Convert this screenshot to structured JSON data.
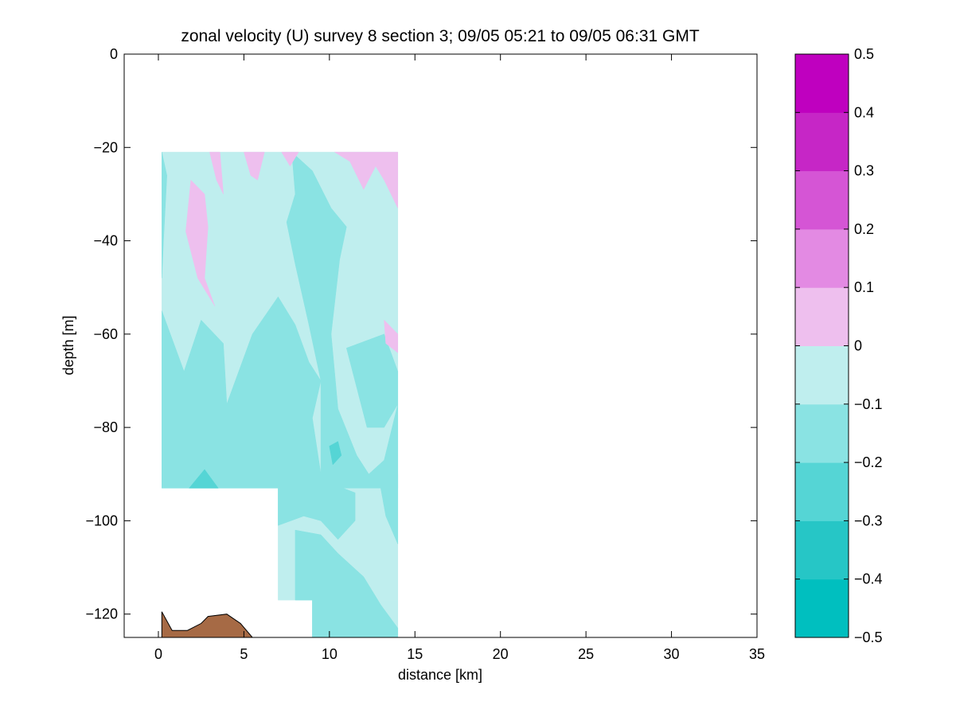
{
  "chart_data": {
    "type": "heatmap",
    "subtype": "filled-contour",
    "title": "zonal velocity (U) survey 8 section 3; 09/05 05:21 to 09/05 06:31 GMT",
    "xlabel": "distance [km]",
    "ylabel": "depth [m]",
    "xlim": [
      -2,
      35
    ],
    "ylim": [
      -125,
      0
    ],
    "xticks": [
      0,
      5,
      10,
      15,
      20,
      25,
      30,
      35
    ],
    "yticks": [
      0,
      -20,
      -40,
      -60,
      -80,
      -100,
      -120
    ],
    "xtick_labels": [
      "0",
      "5",
      "10",
      "15",
      "20",
      "25",
      "30",
      "35"
    ],
    "ytick_labels": [
      "0",
      "−20",
      "−40",
      "−60",
      "−80",
      "−100",
      "−120"
    ],
    "grid": false,
    "colorbar": {
      "levels": [
        -0.5,
        -0.4,
        -0.3,
        -0.2,
        -0.1,
        0,
        0.1,
        0.2,
        0.3,
        0.4,
        0.5
      ],
      "tick_labels": [
        "−0.5",
        "−0.4",
        "−0.3",
        "−0.2",
        "−0.1",
        "0",
        "0.1",
        "0.2",
        "0.3",
        "0.4",
        "0.5"
      ],
      "colors": [
        "#00bfbf",
        "#26c6c6",
        "#55d5d5",
        "#8ae3e3",
        "#bfeeee",
        "#eebfee",
        "#e38ae3",
        "#d555d5",
        "#c626c6",
        "#bf00bf"
      ]
    },
    "bathymetry_color": "#a66a45",
    "background_level_color": "#bfeeee",
    "regions": [
      {
        "level": -0.1,
        "polygon": [
          [
            0.2,
            -21
          ],
          [
            14,
            -21
          ],
          [
            14,
            -93
          ],
          [
            0.2,
            -93
          ]
        ]
      },
      {
        "level": -0.1,
        "polygon": [
          [
            7,
            -93
          ],
          [
            14,
            -93
          ],
          [
            14,
            -117
          ],
          [
            7,
            -117
          ]
        ]
      },
      {
        "level": -0.1,
        "polygon": [
          [
            9,
            -117
          ],
          [
            14,
            -117
          ],
          [
            14,
            -125
          ],
          [
            9,
            -125
          ]
        ]
      },
      {
        "level": -0.2,
        "polygon": [
          [
            0.2,
            -55
          ],
          [
            1.5,
            -68
          ],
          [
            2.5,
            -57
          ],
          [
            3.8,
            -62
          ],
          [
            4,
            -75
          ],
          [
            5.5,
            -60
          ],
          [
            7,
            -52
          ],
          [
            8,
            -58
          ],
          [
            8.8,
            -66
          ],
          [
            9.5,
            -70
          ],
          [
            9,
            -78
          ],
          [
            9.5,
            -90
          ],
          [
            10.8,
            -93
          ],
          [
            0.2,
            -93
          ]
        ]
      },
      {
        "level": -0.2,
        "polygon": [
          [
            0.2,
            -21
          ],
          [
            0.5,
            -26
          ],
          [
            0.3,
            -40
          ],
          [
            0.2,
            -48
          ]
        ]
      },
      {
        "level": -0.2,
        "polygon": [
          [
            7.8,
            -21
          ],
          [
            9,
            -25
          ],
          [
            10.1,
            -33
          ],
          [
            11,
            -37
          ],
          [
            10.6,
            -44
          ],
          [
            10.1,
            -60
          ],
          [
            10.5,
            -76
          ],
          [
            11.6,
            -86
          ],
          [
            12.3,
            -90
          ],
          [
            13.2,
            -87
          ],
          [
            14,
            -75
          ],
          [
            14,
            -93
          ],
          [
            10.8,
            -93
          ],
          [
            9.5,
            -90
          ],
          [
            9.5,
            -70
          ],
          [
            8.8,
            -58
          ],
          [
            8,
            -45
          ],
          [
            7.5,
            -36
          ],
          [
            8,
            -30
          ]
        ]
      },
      {
        "level": -0.2,
        "polygon": [
          [
            11,
            -63
          ],
          [
            13.2,
            -60
          ],
          [
            14,
            -68
          ],
          [
            14,
            -75
          ],
          [
            13.2,
            -80
          ],
          [
            12.2,
            -80
          ]
        ]
      },
      {
        "level": -0.2,
        "polygon": [
          [
            7,
            -93
          ],
          [
            10.8,
            -93
          ],
          [
            11.5,
            -94
          ],
          [
            11.5,
            -100
          ],
          [
            10.5,
            -104
          ],
          [
            9.5,
            -100
          ],
          [
            8.5,
            -99
          ],
          [
            7,
            -101
          ]
        ]
      },
      {
        "level": -0.2,
        "polygon": [
          [
            8,
            -102
          ],
          [
            9.5,
            -103
          ],
          [
            10.5,
            -107
          ],
          [
            12,
            -112
          ],
          [
            13,
            -118
          ],
          [
            14,
            -123
          ],
          [
            14,
            -125
          ],
          [
            9,
            -125
          ],
          [
            9,
            -117
          ],
          [
            8,
            -117
          ]
        ]
      },
      {
        "level": -0.2,
        "polygon": [
          [
            13,
            -93
          ],
          [
            14,
            -90
          ],
          [
            14,
            -105
          ],
          [
            13.3,
            -99
          ]
        ]
      },
      {
        "level": -0.3,
        "polygon": [
          [
            1.8,
            -93
          ],
          [
            2.7,
            -89
          ],
          [
            3.5,
            -93
          ]
        ]
      },
      {
        "level": -0.3,
        "polygon": [
          [
            10,
            -84
          ],
          [
            10.5,
            -83
          ],
          [
            10.7,
            -86
          ],
          [
            10.2,
            -88
          ]
        ]
      },
      {
        "level": 0.0,
        "polygon": [
          [
            3,
            -21
          ],
          [
            3.6,
            -21
          ],
          [
            3.8,
            -30
          ],
          [
            3.4,
            -27
          ]
        ]
      },
      {
        "level": 0.0,
        "polygon": [
          [
            1.9,
            -27
          ],
          [
            2.7,
            -30
          ],
          [
            2.9,
            -37
          ],
          [
            2.7,
            -48
          ],
          [
            3.3,
            -54
          ],
          [
            2.3,
            -48
          ],
          [
            1.6,
            -38
          ]
        ]
      },
      {
        "level": 0.0,
        "polygon": [
          [
            5,
            -21
          ],
          [
            6.2,
            -21
          ],
          [
            5.8,
            -27
          ],
          [
            5.4,
            -26
          ]
        ]
      },
      {
        "level": 0.0,
        "polygon": [
          [
            7.2,
            -21
          ],
          [
            8.2,
            -21
          ],
          [
            7.7,
            -24
          ]
        ]
      },
      {
        "level": 0.0,
        "polygon": [
          [
            10.3,
            -21
          ],
          [
            14,
            -21
          ],
          [
            14,
            -33
          ],
          [
            13.2,
            -27
          ],
          [
            12.7,
            -24
          ],
          [
            12,
            -29
          ],
          [
            11.2,
            -23
          ]
        ]
      },
      {
        "level": 0.0,
        "polygon": [
          [
            13.2,
            -57
          ],
          [
            14,
            -60
          ],
          [
            14,
            -64
          ],
          [
            13.3,
            -62
          ]
        ]
      }
    ],
    "bathymetry": [
      [
        0.2,
        -125
      ],
      [
        0.2,
        -119.5
      ],
      [
        0.8,
        -123.5
      ],
      [
        1.7,
        -123.5
      ],
      [
        2.5,
        -122
      ],
      [
        2.9,
        -120.5
      ],
      [
        4,
        -120
      ],
      [
        4.8,
        -122
      ],
      [
        5.5,
        -125
      ]
    ]
  }
}
